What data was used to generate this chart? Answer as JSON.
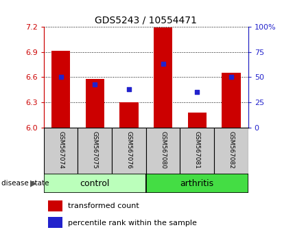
{
  "title": "GDS5243 / 10554471",
  "samples": [
    "GSM567074",
    "GSM567075",
    "GSM567076",
    "GSM567080",
    "GSM567081",
    "GSM567082"
  ],
  "groups": [
    "control",
    "control",
    "control",
    "arthritis",
    "arthritis",
    "arthritis"
  ],
  "bar_values": [
    6.91,
    6.58,
    6.3,
    7.19,
    6.18,
    6.65
  ],
  "percentile_values": [
    50,
    43,
    38,
    63,
    35,
    50
  ],
  "ylim_left": [
    6.0,
    7.2
  ],
  "ylim_right": [
    0,
    100
  ],
  "left_ticks": [
    6.0,
    6.3,
    6.6,
    6.9,
    7.2
  ],
  "right_ticks": [
    0,
    25,
    50,
    75,
    100
  ],
  "bar_color": "#cc0000",
  "dot_color": "#2222cc",
  "control_color": "#bbffbb",
  "arthritis_color": "#44dd44",
  "sample_box_color": "#cccccc",
  "left_axis_color": "#cc0000",
  "right_axis_color": "#2222cc",
  "bar_width": 0.55,
  "base_value": 6.0,
  "tick_label_fontsize": 8,
  "title_fontsize": 10,
  "legend_fontsize": 8,
  "sample_fontsize": 6.5,
  "group_fontsize": 9
}
